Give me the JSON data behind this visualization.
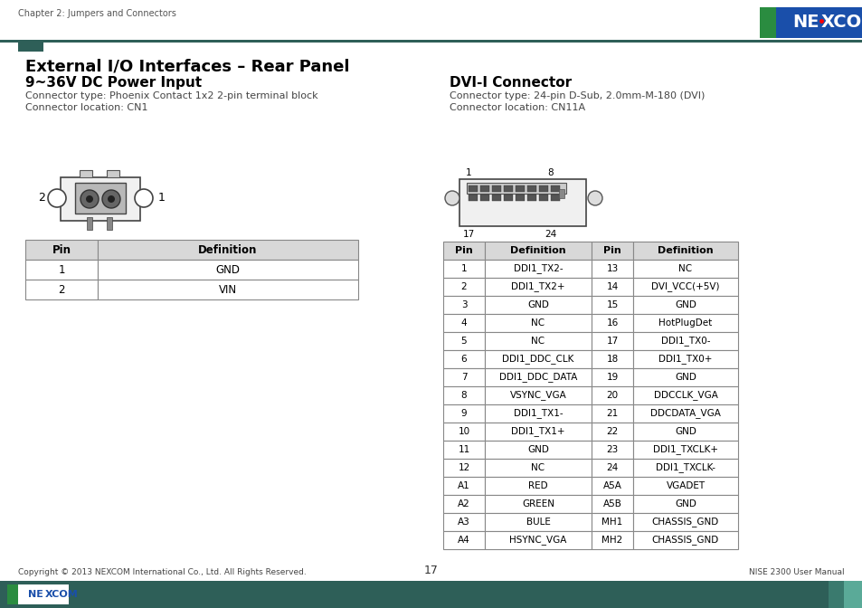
{
  "page_header_text": "Chapter 2: Jumpers and Connectors",
  "section_title": "External I/O Interfaces – Rear Panel",
  "subsection1_title": "9~36V DC Power Input",
  "subsection1_desc1": "Connector type: Phoenix Contact 1x2 2-pin terminal block",
  "subsection1_desc2": "Connector location: CN1",
  "subsection2_title": "DVI-I Connector",
  "subsection2_desc1": "Connector type: 24-pin D-Sub, 2.0mm-M-180 (DVI)",
  "subsection2_desc2": "Connector location: CN11A",
  "power_table_headers": [
    "Pin",
    "Definition"
  ],
  "power_table_rows": [
    [
      "1",
      "GND"
    ],
    [
      "2",
      "VIN"
    ]
  ],
  "dvi_table_headers": [
    "Pin",
    "Definition",
    "Pin",
    "Definition"
  ],
  "dvi_table_rows": [
    [
      "1",
      "DDI1_TX2-",
      "13",
      "NC"
    ],
    [
      "2",
      "DDI1_TX2+",
      "14",
      "DVI_VCC(+5V)"
    ],
    [
      "3",
      "GND",
      "15",
      "GND"
    ],
    [
      "4",
      "NC",
      "16",
      "HotPlugDet"
    ],
    [
      "5",
      "NC",
      "17",
      "DDI1_TX0-"
    ],
    [
      "6",
      "DDI1_DDC_CLK",
      "18",
      "DDI1_TX0+"
    ],
    [
      "7",
      "DDI1_DDC_DATA",
      "19",
      "GND"
    ],
    [
      "8",
      "VSYNC_VGA",
      "20",
      "DDCCLK_VGA"
    ],
    [
      "9",
      "DDI1_TX1-",
      "21",
      "DDCDATA_VGA"
    ],
    [
      "10",
      "DDI1_TX1+",
      "22",
      "GND"
    ],
    [
      "11",
      "GND",
      "23",
      "DDI1_TXCLK+"
    ],
    [
      "12",
      "NC",
      "24",
      "DDI1_TXCLK-"
    ],
    [
      "A1",
      "RED",
      "A5A",
      "VGADET"
    ],
    [
      "A2",
      "GREEN",
      "A5B",
      "GND"
    ],
    [
      "A3",
      "BULE",
      "MH1",
      "CHASSIS_GND"
    ],
    [
      "A4",
      "HSYNC_VGA",
      "MH2",
      "CHASSIS_GND"
    ]
  ],
  "footer_copyright": "Copyright © 2013 NEXCOM International Co., Ltd. All Rights Reserved.",
  "footer_page": "17",
  "footer_manual": "NISE 2300 User Manual",
  "header_color": "#2e5f58",
  "nexcom_blue": "#1a4faa",
  "nexcom_green_strip": "#2a8c40",
  "accent_bar_color": "#2e5f58",
  "table_header_bg": "#d8d8d8",
  "table_border_color": "#888888",
  "footer_bg": "#2e5f58"
}
